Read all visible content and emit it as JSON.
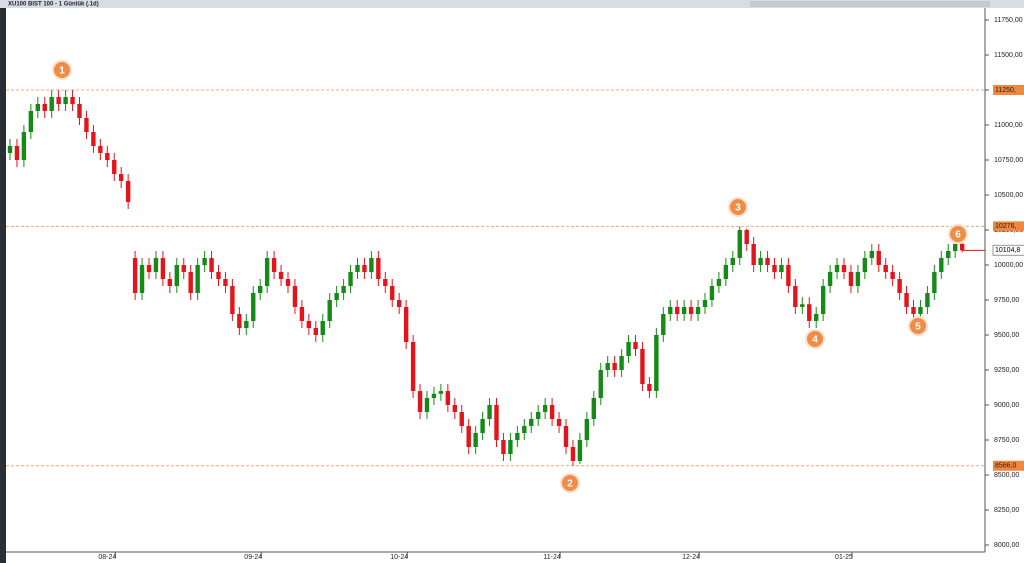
{
  "chart_data": {
    "type": "candlestick",
    "title": "XU100 BIST 100 - 1 Günlük (.1d)",
    "categories": [
      null,
      null,
      null,
      null,
      null,
      null,
      null,
      null,
      null,
      null,
      null,
      null,
      null,
      null,
      "08-24",
      null,
      null,
      null,
      null,
      null,
      null,
      null,
      null,
      null,
      null,
      null,
      null,
      null,
      null,
      null,
      null,
      null,
      null,
      null,
      null,
      "09-24",
      null,
      null,
      null,
      null,
      null,
      null,
      null,
      null,
      null,
      null,
      null,
      null,
      null,
      null,
      null,
      null,
      null,
      null,
      null,
      null,
      "10-24",
      null,
      null,
      null,
      null,
      null,
      null,
      null,
      null,
      null,
      null,
      null,
      null,
      null,
      null,
      null,
      null,
      null,
      null,
      null,
      null,
      null,
      "11-24",
      null,
      null,
      null,
      null,
      null,
      null,
      null,
      null,
      null,
      null,
      null,
      null,
      null,
      null,
      null,
      null,
      null,
      null,
      null,
      "12-24",
      null,
      null,
      null,
      null,
      null,
      null,
      null,
      null,
      null,
      null,
      null,
      null,
      null,
      null,
      null,
      null,
      null,
      null,
      null,
      null,
      null,
      "01-25",
      null,
      null,
      null,
      null,
      null,
      null,
      null,
      null,
      null,
      null,
      null,
      null,
      null,
      null,
      null,
      null,
      null
    ],
    "candles": {
      "open": [
        10800,
        10850,
        10750,
        10950,
        11100,
        11150,
        11100,
        11200,
        11150,
        11200,
        11150,
        11050,
        10950,
        10850,
        10800,
        10750,
        10650,
        10600,
        10050,
        9800,
        10000,
        9950,
        10050,
        9900,
        9850,
        10000,
        9950,
        9800,
        10000,
        10050,
        9950,
        9900,
        9850,
        9650,
        9550,
        9600,
        9800,
        9850,
        10050,
        9950,
        9900,
        9850,
        9700,
        9600,
        9550,
        9500,
        9600,
        9750,
        9800,
        9850,
        9950,
        10000,
        9950,
        10050,
        9900,
        9850,
        9750,
        9700,
        9450,
        9100,
        8950,
        9050,
        9080,
        9100,
        9000,
        8950,
        8850,
        8700,
        8800,
        8900,
        9000,
        8750,
        8650,
        8750,
        8800,
        8850,
        8900,
        8950,
        9000,
        8900,
        8850,
        8700,
        8600,
        8750,
        8900,
        9050,
        9250,
        9300,
        9250,
        9350,
        9450,
        9400,
        9150,
        9100,
        9500,
        9650,
        9700,
        9650,
        9700,
        9650,
        9700,
        9750,
        9850,
        9900,
        10000,
        10050,
        10250,
        10150,
        10000,
        10050,
        10000,
        9950,
        10000,
        9850,
        9700,
        9720,
        9600,
        9650,
        9850,
        9950,
        10000,
        9950,
        9850,
        9950,
        10050,
        10100,
        10000,
        9950,
        9900,
        9800,
        9700,
        9650,
        9700,
        9800,
        9950,
        10050,
        10100,
        10150
      ],
      "high": [
        10900,
        10900,
        11000,
        11150,
        11200,
        11200,
        11250,
        11250,
        11250,
        11250,
        11200,
        11100,
        11000,
        10900,
        10850,
        10800,
        10700,
        10650,
        10100,
        10050,
        10050,
        10100,
        10100,
        9950,
        10050,
        10050,
        10000,
        10050,
        10100,
        10100,
        10000,
        9950,
        9900,
        9700,
        9650,
        9850,
        9900,
        10100,
        10100,
        10000,
        9950,
        9900,
        9750,
        9650,
        9600,
        9650,
        9800,
        9850,
        9900,
        10000,
        10050,
        10050,
        10100,
        10100,
        9950,
        9900,
        9800,
        9750,
        9500,
        9150,
        9100,
        9130,
        9150,
        9150,
        9050,
        9000,
        8900,
        8850,
        8950,
        9050,
        9050,
        8800,
        8800,
        8850,
        8900,
        8950,
        9000,
        9050,
        9050,
        8950,
        8900,
        8750,
        8800,
        8950,
        9100,
        9300,
        9350,
        9350,
        9400,
        9500,
        9500,
        9450,
        9200,
        9550,
        9700,
        9750,
        9750,
        9750,
        9750,
        9750,
        9800,
        9900,
        9950,
        10050,
        10100,
        10276,
        10260,
        10200,
        10100,
        10100,
        10050,
        10050,
        10050,
        9900,
        9770,
        9770,
        9700,
        9900,
        10000,
        10050,
        10050,
        10000,
        10000,
        10100,
        10150,
        10150,
        10050,
        10000,
        9950,
        9850,
        9750,
        9750,
        9850,
        10000,
        10100,
        10150,
        10200,
        10160
      ],
      "low": [
        10750,
        10700,
        10700,
        10900,
        11050,
        11050,
        11050,
        11100,
        11100,
        11100,
        11000,
        10900,
        10800,
        10750,
        10700,
        10600,
        10550,
        10400,
        9750,
        9750,
        9900,
        9900,
        9850,
        9800,
        9800,
        9900,
        9750,
        9750,
        9950,
        9900,
        9850,
        9800,
        9600,
        9500,
        9500,
        9550,
        9750,
        9800,
        9900,
        9850,
        9800,
        9650,
        9550,
        9500,
        9450,
        9450,
        9550,
        9700,
        9750,
        9800,
        9900,
        9900,
        9900,
        9850,
        9800,
        9700,
        9650,
        9400,
        9050,
        8900,
        8900,
        9000,
        9030,
        8950,
        8900,
        8800,
        8650,
        8650,
        8750,
        8850,
        8700,
        8600,
        8600,
        8700,
        8750,
        8800,
        8850,
        8900,
        8850,
        8800,
        8650,
        8566,
        8580,
        8700,
        8850,
        9000,
        9200,
        9200,
        9200,
        9300,
        9350,
        9100,
        9050,
        9050,
        9450,
        9600,
        9600,
        9600,
        9600,
        9600,
        9650,
        9700,
        9800,
        9850,
        9950,
        10000,
        10100,
        9950,
        9950,
        9950,
        9900,
        9900,
        9800,
        9650,
        9650,
        9550,
        9550,
        9600,
        9800,
        9900,
        9900,
        9800,
        9800,
        9900,
        10000,
        9950,
        9900,
        9850,
        9750,
        9650,
        9600,
        9600,
        9650,
        9750,
        9900,
        10000,
        10050,
        10090
      ],
      "close": [
        10850,
        10750,
        10950,
        11100,
        11150,
        11100,
        11200,
        11150,
        11200,
        11150,
        11050,
        10950,
        10850,
        10800,
        10750,
        10650,
        10600,
        10450,
        9800,
        10000,
        9950,
        10050,
        9900,
        9850,
        10000,
        9950,
        9800,
        10000,
        10050,
        9950,
        9900,
        9850,
        9650,
        9550,
        9600,
        9800,
        9850,
        10050,
        9950,
        9900,
        9850,
        9700,
        9600,
        9550,
        9500,
        9600,
        9750,
        9800,
        9850,
        9950,
        10000,
        9950,
        10050,
        9900,
        9850,
        9750,
        9700,
        9450,
        9100,
        8950,
        9050,
        9080,
        9100,
        9000,
        8950,
        8850,
        8700,
        8800,
        8900,
        9000,
        8750,
        8650,
        8750,
        8800,
        8850,
        8900,
        8950,
        9000,
        8900,
        8850,
        8700,
        8600,
        8750,
        8900,
        9050,
        9250,
        9300,
        9250,
        9350,
        9450,
        9400,
        9150,
        9100,
        9500,
        9650,
        9700,
        9650,
        9700,
        9650,
        9700,
        9750,
        9850,
        9900,
        10000,
        10050,
        10250,
        10150,
        10000,
        10050,
        10000,
        9950,
        10000,
        9850,
        9700,
        9720,
        9600,
        9650,
        9850,
        9950,
        10000,
        9950,
        9850,
        9950,
        10050,
        10100,
        10000,
        9950,
        9900,
        9800,
        9700,
        9650,
        9700,
        9800,
        9950,
        10050,
        10100,
        10150,
        10105
      ]
    },
    "up_color": "#168a16",
    "down_color": "#e3141c",
    "ylim": [
      8000,
      11750
    ],
    "yticks": [
      {
        "value": 11750,
        "label": "11750,00"
      },
      {
        "value": 11500,
        "label": "11500,00"
      },
      {
        "value": 11250,
        "label": "11250,00"
      },
      {
        "value": 11000,
        "label": "11000,00"
      },
      {
        "value": 10750,
        "label": "10750,00"
      },
      {
        "value": 10500,
        "label": "10500,00"
      },
      {
        "value": 10250,
        "label": "10250,00"
      },
      {
        "value": 10000,
        "label": "10000,00"
      },
      {
        "value": 9750,
        "label": "9750,00"
      },
      {
        "value": 9500,
        "label": "9500,00"
      },
      {
        "value": 9250,
        "label": "9250,00"
      },
      {
        "value": 9000,
        "label": "9000,00"
      },
      {
        "value": 8750,
        "label": "8750,00"
      },
      {
        "value": 8500,
        "label": "8500,00"
      },
      {
        "value": 8250,
        "label": "8250,00"
      },
      {
        "value": 8000,
        "label": "8000,00"
      }
    ],
    "levels": [
      {
        "value": 11250,
        "label": "11250,"
      },
      {
        "value": 10276,
        "label": "10276,"
      },
      {
        "value": 8566,
        "label": "8566,0"
      }
    ],
    "last_price": {
      "value": 10104.8,
      "label": "10104,8"
    },
    "markers": [
      "1",
      "2",
      "3",
      "4",
      "5",
      "6"
    ]
  }
}
